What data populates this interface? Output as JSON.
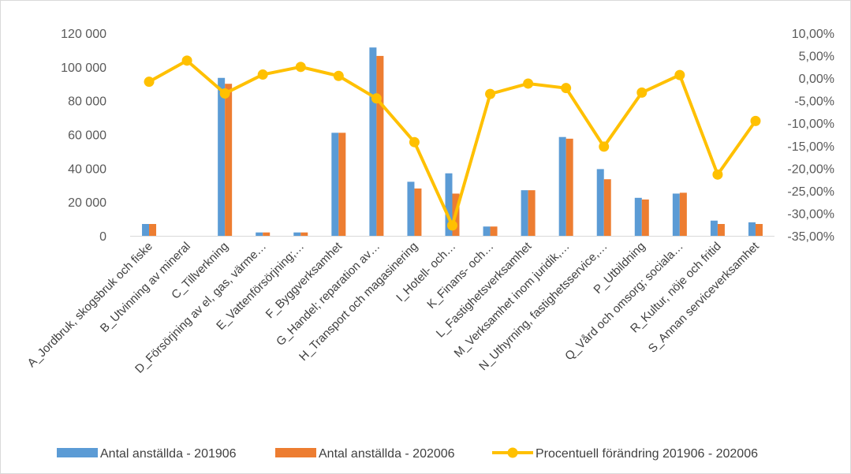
{
  "chart_data": {
    "type": "bar+line",
    "categories": [
      "A_Jordbruk, skogsbruk och fiske",
      "B_Utvinning av mineral",
      "C_Tillverkning",
      "D_Försörjning av el, gas, värme…",
      "E_Vattenförsörjning;…",
      "F_Byggverksamhet",
      "G_Handel; reparation av…",
      "H_Transport och magasinering",
      "I_Hotell- och…",
      "K_Finans- och…",
      "L_Fastighetsverksamhet",
      "M_Verksamhet inom juridik,…",
      "N_Uthyrning, fastighetsservice,…",
      "P_Utbildning",
      "Q_Vård och omsorg; sociala…",
      "R_Kultur, nöje och fritid",
      "S_Annan serviceverksamhet"
    ],
    "series": [
      {
        "name": "Antal anställda - 201906",
        "axis": "left",
        "type": "bar",
        "color": "#5b9bd5",
        "values": [
          7000,
          0,
          93500,
          2000,
          2000,
          61000,
          111500,
          32000,
          37000,
          5500,
          27000,
          58500,
          39500,
          22500,
          25000,
          9000,
          8000
        ]
      },
      {
        "name": "Antal anställda - 202006",
        "axis": "right",
        "type": "bar",
        "color": "#ed7d31",
        "values": [
          7000,
          0,
          90000,
          2000,
          2000,
          61000,
          106500,
          28000,
          25000,
          5500,
          27000,
          57500,
          33500,
          21500,
          25500,
          7000,
          7000
        ]
      },
      {
        "name": "Procentuell förändring 201906 - 202006",
        "axis": "right",
        "type": "line",
        "color": "#ffc000",
        "values": [
          -0.8,
          3.9,
          -3.4,
          0.8,
          2.5,
          0.5,
          -4.5,
          -14.2,
          -32.7,
          -3.5,
          -1.2,
          -2.2,
          -15.2,
          -3.2,
          0.7,
          -21.4,
          -9.5
        ]
      }
    ],
    "left_axis": {
      "min": 0,
      "max": 120000,
      "step": 20000,
      "tick_labels": [
        "0",
        "20 000",
        "40 000",
        "60 000",
        "80 000",
        "100 000",
        "120 000"
      ]
    },
    "right_axis": {
      "min": -35,
      "max": 10,
      "step": 5,
      "tick_labels": [
        "-35,00%",
        "-30,00%",
        "-25,00%",
        "-20,00%",
        "-15,00%",
        "-10,00%",
        "-5,00%",
        "0,00%",
        "5,00%",
        "10,00%"
      ]
    },
    "legend_position": "bottom",
    "grid": false
  }
}
